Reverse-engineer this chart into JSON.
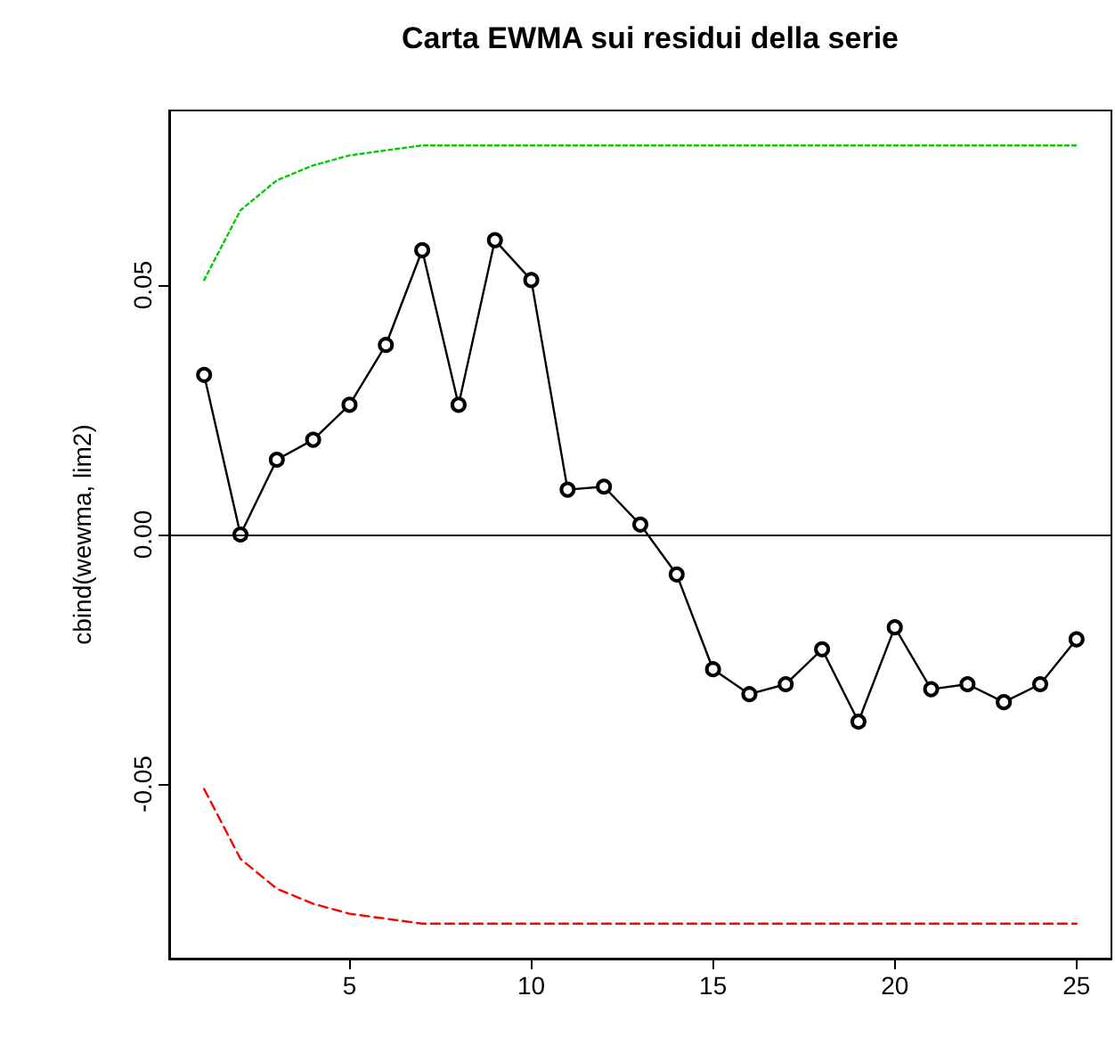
{
  "chart_data": {
    "type": "line",
    "title": "Carta EWMA sui residui della serie",
    "ylabel": "cbind(wewma, lim2)",
    "x": [
      1,
      2,
      3,
      4,
      5,
      6,
      7,
      8,
      9,
      10,
      11,
      12,
      13,
      14,
      15,
      16,
      17,
      18,
      19,
      20,
      21,
      22,
      23,
      24,
      25
    ],
    "series": [
      {
        "color": "#000000",
        "marker": "circle",
        "line_style": "solid",
        "values": [
          0.032,
          0.0,
          0.015,
          0.019,
          0.026,
          0.038,
          0.057,
          0.026,
          0.059,
          0.051,
          0.009,
          0.0096,
          0.002,
          -0.008,
          -0.027,
          -0.032,
          -0.03,
          -0.023,
          -0.0375,
          -0.0186,
          -0.031,
          -0.03,
          -0.0336,
          -0.03,
          -0.021
        ]
      },
      {
        "color": "#00cc00",
        "marker": "none",
        "line_style": "dotted",
        "values": [
          0.051,
          0.065,
          0.071,
          0.074,
          0.076,
          0.077,
          0.078,
          0.078,
          0.078,
          0.078,
          0.078,
          0.078,
          0.078,
          0.078,
          0.078,
          0.078,
          0.078,
          0.078,
          0.078,
          0.078,
          0.078,
          0.078,
          0.078,
          0.078,
          0.078
        ]
      },
      {
        "color": "#ff0000",
        "marker": "none",
        "line_style": "dashed",
        "values": [
          -0.051,
          -0.065,
          -0.071,
          -0.074,
          -0.076,
          -0.077,
          -0.078,
          -0.078,
          -0.078,
          -0.078,
          -0.078,
          -0.078,
          -0.078,
          -0.078,
          -0.078,
          -0.078,
          -0.078,
          -0.078,
          -0.078,
          -0.078,
          -0.078,
          -0.078,
          -0.078,
          -0.078,
          -0.078
        ]
      }
    ],
    "xlim": [
      0.04,
      25.96
    ],
    "xticks": [
      5,
      10,
      15,
      20,
      25
    ],
    "ylim": [
      -0.085,
      0.085
    ],
    "yticks": [
      {
        "value": -0.05,
        "label": "-0.05"
      },
      {
        "value": 0,
        "label": "0.00"
      },
      {
        "value": 0.05,
        "label": "0.05"
      }
    ],
    "ref_lines": [
      {
        "axis": "y",
        "value": 0,
        "color": "#000000",
        "line_style": "solid"
      }
    ],
    "grid": false
  }
}
